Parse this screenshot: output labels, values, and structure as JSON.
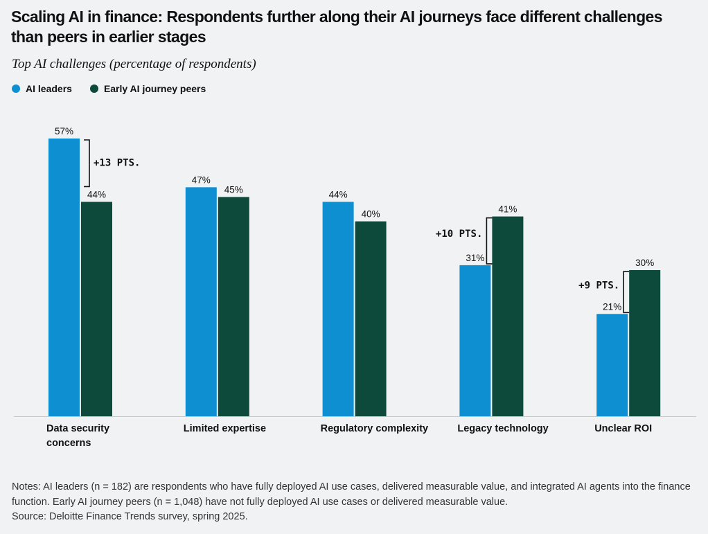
{
  "title": "Scaling AI in finance: Respondents further along their AI journeys face different challenges than peers in earlier stages",
  "notes": "Notes: AI leaders (n = 182) are respondents who have fully deployed AI use cases, delivered measurable value, and integrated AI agents into the finance function. Early AI journey peers (n = 1,048) have not fully deployed AI use cases or delivered measurable value.",
  "source": "Source: Deloitte Finance Trends survey, spring 2025.",
  "colors": {
    "ai_leaders": "#0e8fd1",
    "early_peers": "#0d4a3c",
    "background": "#f1f2f4"
  },
  "chart_data": {
    "type": "bar",
    "subtitle": "Top AI challenges (percentage of respondents)",
    "categories": [
      "Data security concerns",
      "Limited expertise",
      "Regulatory complexity",
      "Legacy technology",
      "Unclear ROI"
    ],
    "series": [
      {
        "name": "AI leaders",
        "values": [
          57,
          47,
          44,
          31,
          21
        ],
        "labels": [
          "57%",
          "47%",
          "44%",
          "31%",
          "21%"
        ]
      },
      {
        "name": "Early AI journey peers",
        "values": [
          44,
          45,
          40,
          41,
          30
        ],
        "labels": [
          "44%",
          "45%",
          "40%",
          "41%",
          "30%"
        ]
      }
    ],
    "annotations": [
      {
        "category": "Data security concerns",
        "text": "+13 PTS."
      },
      {
        "category": "Legacy technology",
        "text": "+10 PTS."
      },
      {
        "category": "Unclear ROI",
        "text": "+9 PTS."
      }
    ],
    "ylim": [
      0,
      57
    ],
    "grid": false,
    "legend": "top-left"
  }
}
